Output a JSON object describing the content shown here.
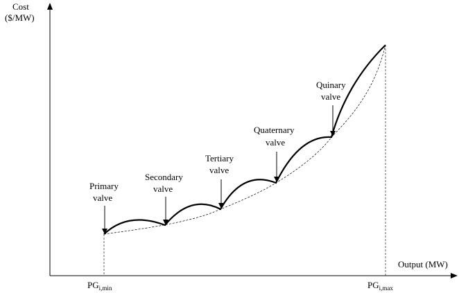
{
  "axes": {
    "y_label_line1": "Cost",
    "y_label_line2": "($/MW)",
    "x_label": "Output (MW)",
    "x_tick_min_main": "PG",
    "x_tick_min_sub": "i,min",
    "x_tick_max_main": "PG",
    "x_tick_max_sub": "i,max"
  },
  "valves": [
    {
      "line1": "Primary",
      "line2": "valve"
    },
    {
      "line1": "Secondary",
      "line2": "valve"
    },
    {
      "line1": "Tertiary",
      "line2": "valve"
    },
    {
      "line1": "Quaternary",
      "line2": "valve"
    },
    {
      "line1": "Quinary",
      "line2": "valve"
    }
  ],
  "colors": {
    "line": "#000000",
    "background": "#ffffff"
  }
}
